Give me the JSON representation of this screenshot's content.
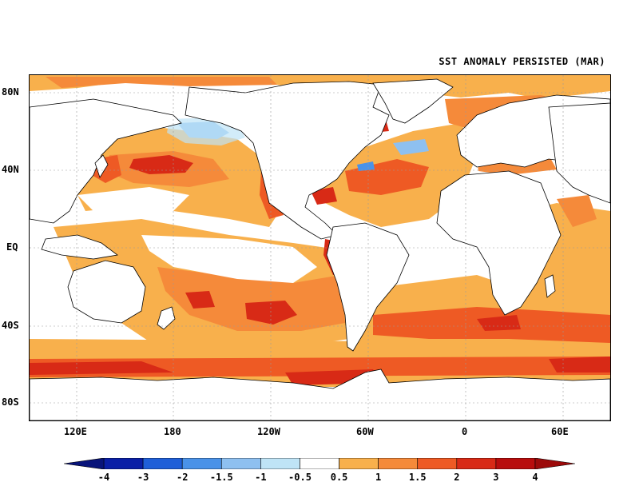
{
  "title": "SST ANOMALY PERSISTED (MAR)",
  "map": {
    "lat_labels": [
      "80N",
      "40N",
      "EQ",
      "40S",
      "80S"
    ],
    "lon_labels": [
      "120E",
      "180",
      "120W",
      "60W",
      "0",
      "60E"
    ]
  },
  "legend": {
    "ticks": [
      "-4",
      "-3",
      "-2",
      "-1.5",
      "-1",
      "-0.5",
      "0.5",
      "1",
      "1.5",
      "2",
      "3",
      "4"
    ],
    "colors": [
      "#0a1fa6",
      "#1f5fd8",
      "#4a92e8",
      "#8ec0f0",
      "#bfe4f6",
      "#ffffff",
      "#f8b04c",
      "#f58a3a",
      "#ee5a24",
      "#d82a16",
      "#b80d0d"
    ],
    "under_color": "#08147a",
    "over_color": "#9c0a0a"
  },
  "colors": {
    "land_outline": "#000000",
    "warm_light": "#f8b04c",
    "warm_mid": "#f58a3a",
    "warm_strong": "#ee5a24",
    "warm_hot": "#d82a16",
    "cool_light": "#bfe4f6",
    "cool_mid": "#8ec0f0"
  }
}
